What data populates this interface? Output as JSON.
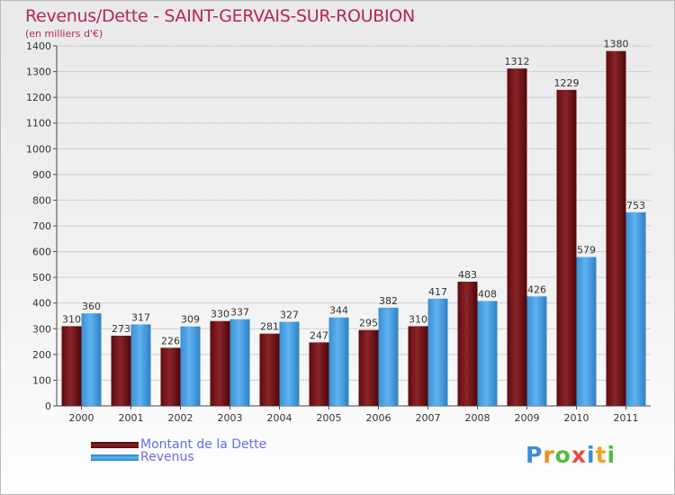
{
  "header": {
    "title": "Revenus/Dette - SAINT-GERVAIS-SUR-ROUBION",
    "subtitle": "(en milliers d'€)"
  },
  "legend": {
    "items": [
      {
        "label": "Montant de la Dette",
        "color": "#7d1b1f"
      },
      {
        "label": "Revenus",
        "color": "#4aa3e6"
      }
    ]
  },
  "logo": {
    "text": "Proxiti",
    "colors": [
      "#3a8fd6",
      "#f08a1c",
      "#58b947",
      "#e94c3d",
      "#3a8fd6",
      "#f0a21c",
      "#58b947"
    ]
  },
  "chart_data": {
    "type": "bar",
    "title": "Revenus/Dette - SAINT-GERVAIS-SUR-ROUBION",
    "subtitle": "(en milliers d'€)",
    "xlabel": "",
    "ylabel": "",
    "categories": [
      "2000",
      "2001",
      "2002",
      "2003",
      "2004",
      "2005",
      "2006",
      "2007",
      "2008",
      "2009",
      "2010",
      "2011"
    ],
    "series": [
      {
        "name": "Montant de la Dette",
        "color": "#7d1b1f",
        "values": [
          310,
          273,
          226,
          330,
          281,
          247,
          295,
          310,
          483,
          1312,
          1229,
          1380
        ]
      },
      {
        "name": "Revenus",
        "color": "#4aa3e6",
        "values": [
          360,
          317,
          309,
          337,
          327,
          344,
          382,
          417,
          408,
          426,
          579,
          753
        ]
      }
    ],
    "ylim": [
      0,
      1400
    ],
    "yticks": [
      0,
      100,
      200,
      300,
      400,
      500,
      600,
      700,
      800,
      900,
      1000,
      1100,
      1200,
      1300,
      1400
    ],
    "grid": true,
    "legend_position": "bottom-left"
  }
}
